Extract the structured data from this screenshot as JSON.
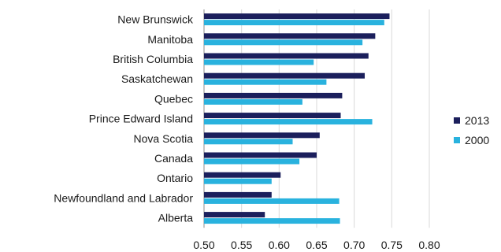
{
  "chart_data": {
    "type": "bar",
    "orientation": "horizontal",
    "categories": [
      "New Brunswick",
      "Manitoba",
      "British Columbia",
      "Saskatchewan",
      "Quebec",
      "Prince Edward Island",
      "Nova Scotia",
      "Canada",
      "Ontario",
      "Newfoundland and Labrador",
      "Alberta"
    ],
    "series": [
      {
        "name": "2013",
        "color": "#1b1f5c",
        "values": [
          0.747,
          0.728,
          0.719,
          0.714,
          0.684,
          0.682,
          0.654,
          0.65,
          0.602,
          0.59,
          0.581
        ]
      },
      {
        "name": "2000",
        "color": "#29b2de",
        "values": [
          0.74,
          0.711,
          0.646,
          0.663,
          0.631,
          0.724,
          0.618,
          0.627,
          0.59,
          0.68,
          0.681
        ]
      }
    ],
    "xlim": [
      0.5,
      0.8
    ],
    "xticks": [
      "0.50",
      "0.55",
      "0.60",
      "0.65",
      "0.70",
      "0.75",
      "0.80"
    ],
    "grid": true,
    "legend": "right"
  }
}
